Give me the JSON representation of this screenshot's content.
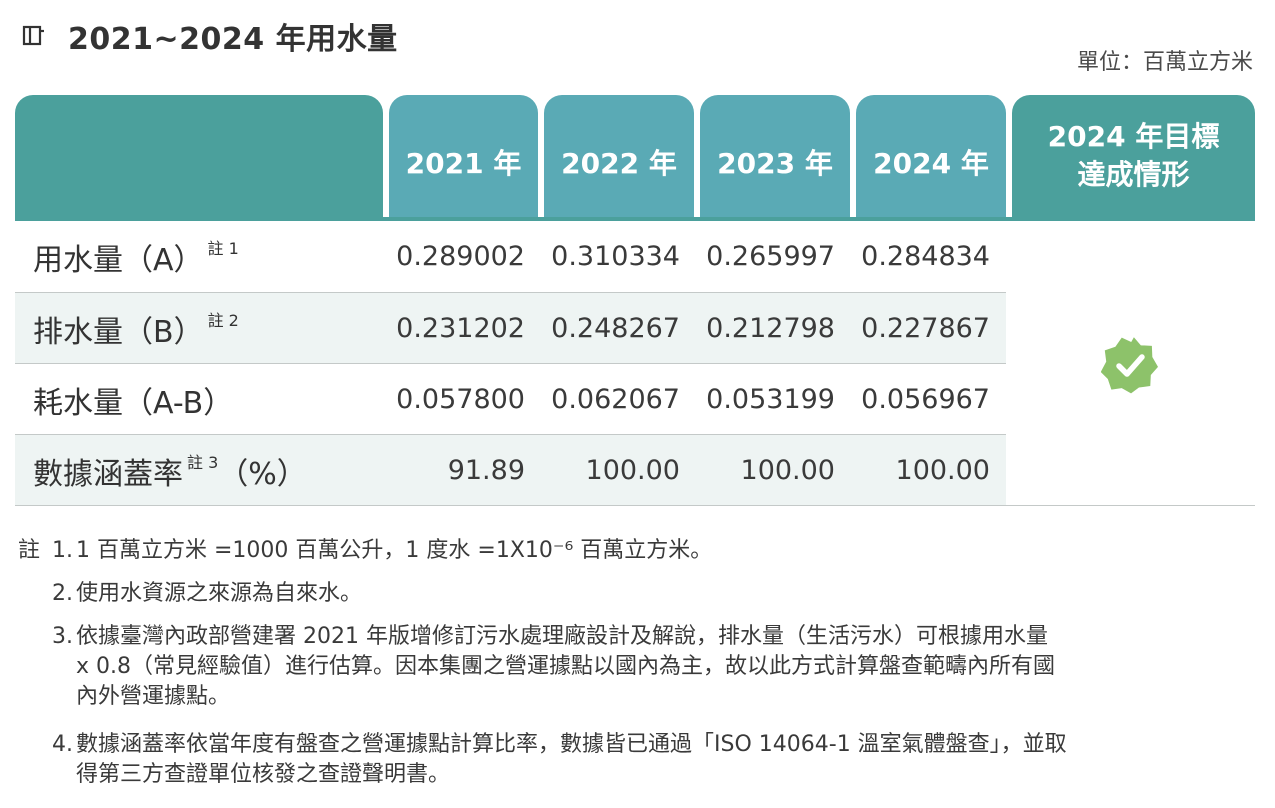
{
  "title": {
    "icon": "table-icon",
    "text": "2021~2024 年用水量"
  },
  "unit": "單位：百萬立方米",
  "table": {
    "headers": [
      "2021 年",
      "2022 年",
      "2023 年",
      "2024 年"
    ],
    "target_header_line1": "2024 年目標",
    "target_header_line2": "達成情形",
    "rows": [
      {
        "label": "用水量（A）",
        "note": "註 1",
        "values": [
          "0.289002",
          "0.310334",
          "0.265997",
          "0.284834"
        ]
      },
      {
        "label": "排水量（B）",
        "note": "註 2",
        "values": [
          "0.231202",
          "0.248267",
          "0.212798",
          "0.227867"
        ]
      },
      {
        "label": "耗水量（A-B）",
        "note": "",
        "values": [
          "0.057800",
          "0.062067",
          "0.053199",
          "0.056967"
        ]
      },
      {
        "label": "數據涵蓋率",
        "note": "註 3",
        "label_suffix": "（%）",
        "values": [
          "91.89",
          "100.00",
          "100.00",
          "100.00"
        ]
      }
    ],
    "target_status_icon": "check-badge-icon",
    "colors": {
      "header_dark": "#4ba09c",
      "header_light": "#5aaab5",
      "row_alt": "#eef4f3",
      "badge": "#8dc26a"
    }
  },
  "notes": {
    "prefix": "註",
    "items": [
      {
        "num": "1.",
        "lines": [
          "1 百萬立方米 =1000 百萬公升，1 度水 =1X10⁻⁶ 百萬立方米。"
        ]
      },
      {
        "num": "2.",
        "lines": [
          "使用水資源之來源為自來水。"
        ]
      },
      {
        "num": "3.",
        "lines": [
          "依據臺灣內政部營建署 2021 年版增修訂污水處理廠設計及解說，排水量（生活污水）可根據用水量",
          "x 0.8（常見經驗值）進行估算。因本集團之營運據點以國內為主，故以此方式計算盤查範疇內所有國",
          "內外營運據點。"
        ]
      },
      {
        "num": "4.",
        "lines": [
          "數據涵蓋率依當年度有盤查之營運據點計算比率，數據皆已通過「ISO 14064-1 溫室氣體盤查」，並取",
          "得第三方查證單位核發之查證聲明書。"
        ]
      }
    ]
  }
}
